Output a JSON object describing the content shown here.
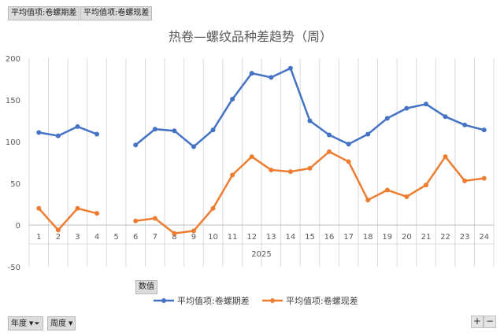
{
  "filters": {
    "filter1": "平均值项:卷螺期差",
    "filter2": "平均值项:卷螺现差"
  },
  "values_field": "数值",
  "axis_fields": {
    "year": "年度",
    "week": "周度"
  },
  "zoom": {
    "plus": "+",
    "minus": "−"
  },
  "chart_data": {
    "type": "line",
    "title": "热卷—螺纹品种差趋势（周）",
    "x_group_label": "2025",
    "categories": [
      "1",
      "2",
      "3",
      "4",
      "5",
      "6",
      "7",
      "8",
      "9",
      "10",
      "11",
      "12",
      "13",
      "14",
      "15",
      "16",
      "17",
      "18",
      "19",
      "20",
      "21",
      "22",
      "23",
      "24"
    ],
    "ylim": [
      -50,
      200
    ],
    "yticks": [
      -50,
      0,
      50,
      100,
      150,
      200
    ],
    "grid": "vertical",
    "legend_position": "bottom",
    "series": [
      {
        "name": "平均值项:卷螺期差",
        "color": "#4472c4",
        "values": [
          111,
          107,
          118,
          109,
          null,
          96,
          115,
          113,
          94,
          114,
          151,
          182,
          177,
          188,
          125,
          108,
          97,
          109,
          128,
          140,
          145,
          130,
          120,
          114
        ]
      },
      {
        "name": "平均值项:卷螺现差",
        "color": "#ed7d31",
        "values": [
          20,
          -6,
          20,
          14,
          null,
          5,
          8,
          -10,
          -7,
          20,
          60,
          82,
          66,
          64,
          68,
          88,
          76,
          30,
          42,
          34,
          48,
          82,
          53,
          56
        ]
      }
    ]
  }
}
